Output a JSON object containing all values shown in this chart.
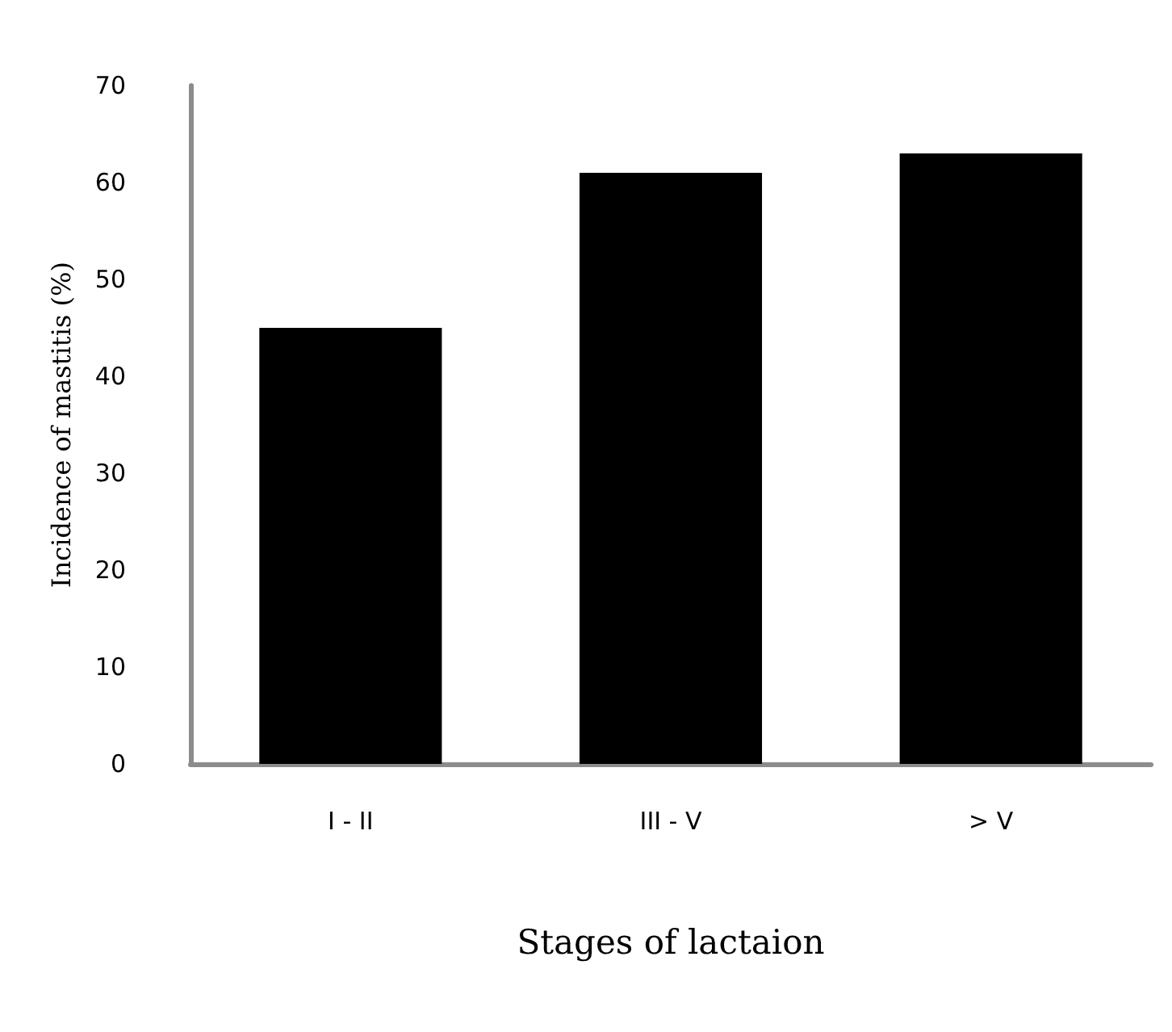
{
  "chart_data": {
    "type": "bar",
    "xlabel": "Stages of lactaion",
    "ylabel": "Incidence of mastitis (%)",
    "categories": [
      "I - II",
      "III - V",
      "> V"
    ],
    "values": [
      45,
      61,
      63
    ],
    "color": "#000000",
    "ylim": [
      0,
      70
    ],
    "yticks": [
      0,
      10,
      20,
      30,
      40,
      50,
      60,
      70
    ],
    "grid": false
  }
}
